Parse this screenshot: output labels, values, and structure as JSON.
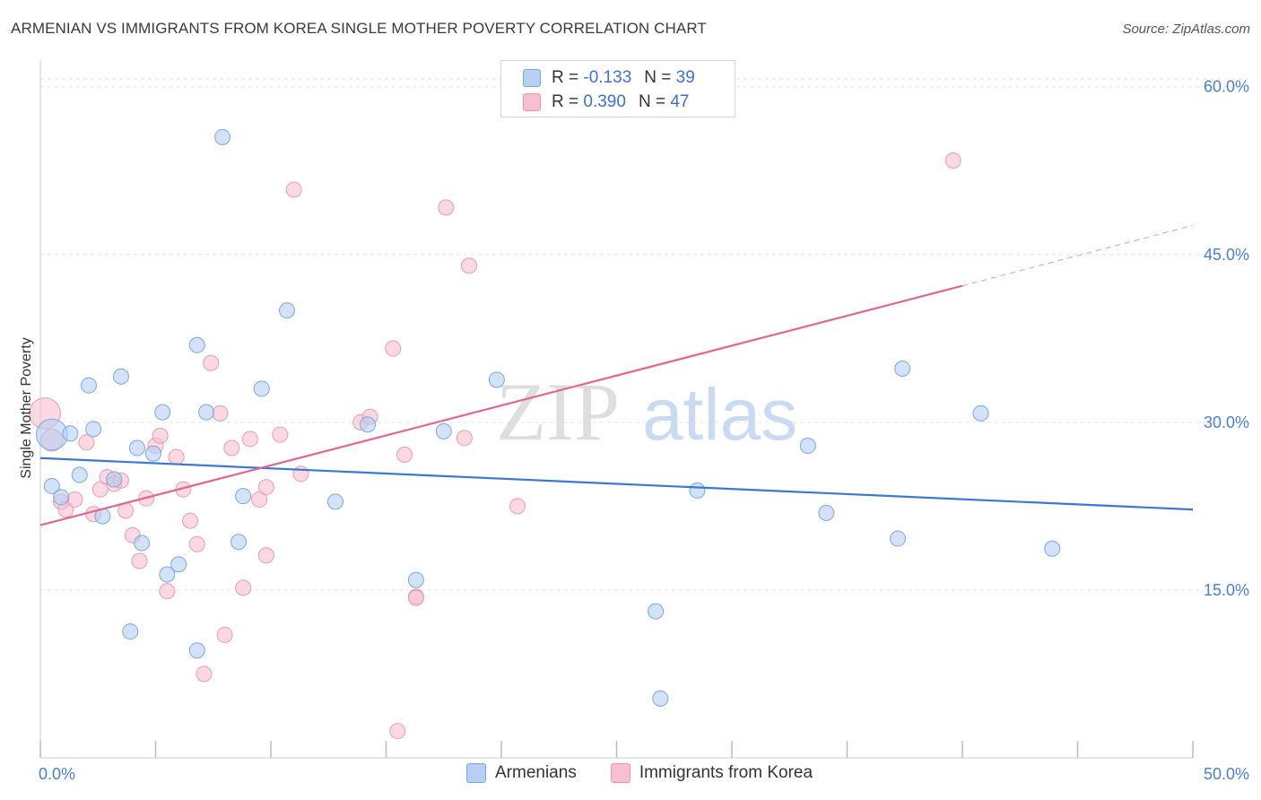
{
  "title": "ARMENIAN VS IMMIGRANTS FROM KOREA SINGLE MOTHER POVERTY CORRELATION CHART",
  "source": "Source: ZipAtlas.com",
  "watermark": {
    "zip": "ZIP",
    "atlas": "atlas"
  },
  "legend": {
    "rows": [
      {
        "r_label": "R =",
        "r_value": "-0.133",
        "n_label": "N =",
        "n_value": "39",
        "color": "#a9c6f0",
        "border": "#7aa5e2"
      },
      {
        "r_label": "R =",
        "r_value": "0.390",
        "n_label": "N =",
        "n_value": "47",
        "color": "#f8c1d1",
        "border": "#ec93ae"
      }
    ]
  },
  "bottom_legend": {
    "armenians": "Armenians",
    "korea": "Immigrants from Korea"
  },
  "chart_data": {
    "type": "scatter",
    "ylabel": "Single Mother Poverty",
    "x_tick_labels": [
      "0.0%",
      "50.0%"
    ],
    "y_tick_labels": [
      "15.0%",
      "30.0%",
      "45.0%",
      "60.0%"
    ],
    "y_ticks": [
      15,
      30,
      45,
      60
    ],
    "xlim": [
      0,
      50
    ],
    "ylim": [
      0,
      61.5
    ],
    "grid": true,
    "colors": {
      "armenians": "#3a78d4",
      "korea": "#e2678f",
      "armenians_fill": "#b6cff2",
      "korea_fill": "#f6c0d0"
    },
    "series": [
      {
        "name": "Armenians",
        "trend": {
          "x0": 0,
          "y0": 26.8,
          "x1": 50,
          "y1": 22.2
        },
        "points": [
          [
            0.5,
            28.9,
            18
          ],
          [
            0.5,
            24.3,
            10
          ],
          [
            0.9,
            23.3,
            10
          ],
          [
            1.3,
            29.0,
            10
          ],
          [
            1.7,
            25.3,
            10
          ],
          [
            2.1,
            33.3,
            10
          ],
          [
            2.3,
            29.4,
            10
          ],
          [
            2.7,
            21.6,
            10
          ],
          [
            3.2,
            24.9,
            10
          ],
          [
            3.5,
            34.1,
            10
          ],
          [
            3.9,
            11.3,
            10
          ],
          [
            4.2,
            27.7,
            10
          ],
          [
            4.4,
            19.2,
            10
          ],
          [
            4.9,
            27.2,
            10
          ],
          [
            5.3,
            30.9,
            10
          ],
          [
            5.5,
            16.4,
            10
          ],
          [
            6.0,
            17.3,
            10
          ],
          [
            6.8,
            36.9,
            10
          ],
          [
            6.8,
            9.6,
            10
          ],
          [
            7.2,
            30.9,
            10
          ],
          [
            7.9,
            55.5,
            10
          ],
          [
            8.6,
            19.3,
            10
          ],
          [
            8.8,
            23.4,
            10
          ],
          [
            9.6,
            33.0,
            10
          ],
          [
            10.7,
            40.0,
            10
          ],
          [
            12.8,
            22.9,
            10
          ],
          [
            14.2,
            29.8,
            10
          ],
          [
            16.3,
            15.9,
            10
          ],
          [
            17.5,
            29.2,
            10
          ],
          [
            19.8,
            33.8,
            10
          ],
          [
            26.7,
            13.1,
            10
          ],
          [
            26.9,
            5.3,
            10
          ],
          [
            28.5,
            23.9,
            10
          ],
          [
            33.3,
            27.9,
            10
          ],
          [
            34.1,
            21.9,
            10
          ],
          [
            37.2,
            19.6,
            10
          ],
          [
            37.4,
            34.8,
            10
          ],
          [
            40.8,
            30.8,
            10
          ],
          [
            43.9,
            18.7,
            10
          ]
        ]
      },
      {
        "name": "Immigrants from Korea",
        "trend": {
          "x0": 0,
          "y0": 20.8,
          "x1": 40,
          "y1": 42.2,
          "dash_x1": 50,
          "dash_y1": 47.6
        },
        "points": [
          [
            0.2,
            30.8,
            18
          ],
          [
            0.5,
            28.4,
            12
          ],
          [
            0.9,
            22.9,
            10
          ],
          [
            1.1,
            22.2,
            10
          ],
          [
            1.5,
            23.1,
            10
          ],
          [
            2.0,
            28.2,
            10
          ],
          [
            2.3,
            21.8,
            10
          ],
          [
            2.6,
            24.0,
            10
          ],
          [
            2.9,
            25.1,
            10
          ],
          [
            3.2,
            24.5,
            10
          ],
          [
            3.5,
            24.8,
            10
          ],
          [
            3.7,
            22.1,
            10
          ],
          [
            4.0,
            19.9,
            10
          ],
          [
            4.3,
            17.6,
            10
          ],
          [
            4.6,
            23.2,
            10
          ],
          [
            5.0,
            27.9,
            10
          ],
          [
            5.2,
            28.8,
            10
          ],
          [
            5.5,
            14.9,
            10
          ],
          [
            5.9,
            26.9,
            10
          ],
          [
            6.2,
            24.0,
            10
          ],
          [
            6.5,
            21.2,
            10
          ],
          [
            6.8,
            19.1,
            10
          ],
          [
            7.1,
            7.5,
            10
          ],
          [
            7.4,
            35.3,
            10
          ],
          [
            7.8,
            30.8,
            10
          ],
          [
            8.0,
            11.0,
            10
          ],
          [
            8.3,
            27.7,
            10
          ],
          [
            8.8,
            15.2,
            10
          ],
          [
            9.1,
            28.5,
            10
          ],
          [
            9.5,
            23.1,
            10
          ],
          [
            9.8,
            18.1,
            10
          ],
          [
            9.8,
            24.2,
            10
          ],
          [
            10.4,
            28.9,
            10
          ],
          [
            11.0,
            50.8,
            10
          ],
          [
            11.3,
            25.4,
            10
          ],
          [
            13.9,
            30.0,
            10
          ],
          [
            14.3,
            30.5,
            10
          ],
          [
            15.3,
            36.6,
            10
          ],
          [
            15.5,
            2.4,
            10
          ],
          [
            15.8,
            27.1,
            10
          ],
          [
            16.3,
            14.4,
            10
          ],
          [
            16.3,
            14.3,
            10
          ],
          [
            17.6,
            49.2,
            10
          ],
          [
            18.4,
            28.6,
            10
          ],
          [
            18.6,
            44.0,
            10
          ],
          [
            20.7,
            22.5,
            10
          ],
          [
            39.6,
            53.4,
            10
          ]
        ]
      }
    ]
  }
}
